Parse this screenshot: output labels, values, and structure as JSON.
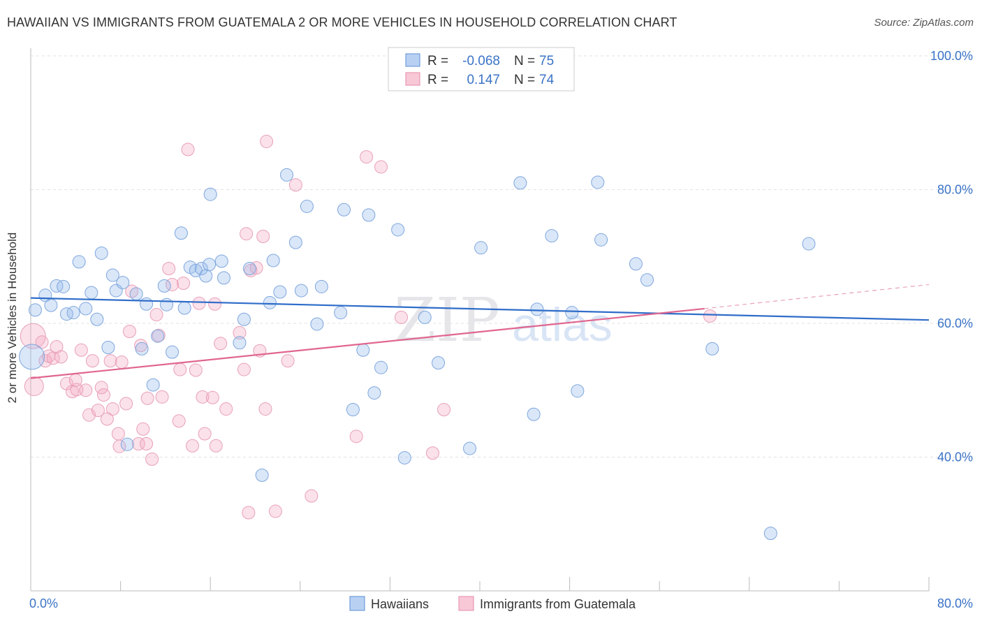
{
  "title": "HAWAIIAN VS IMMIGRANTS FROM GUATEMALA 2 OR MORE VEHICLES IN HOUSEHOLD CORRELATION CHART",
  "source": "Source: ZipAtlas.com",
  "watermark": {
    "zip": "ZIP",
    "atlas": "atlas"
  },
  "stats_box": {
    "rows": [
      {
        "r_label": "R =",
        "r_value": "-0.068",
        "n_label": "N =",
        "n_value": "75"
      },
      {
        "r_label": "R =",
        "r_value": "0.147",
        "n_label": "N =",
        "n_value": "74"
      }
    ]
  },
  "chart_data": {
    "type": "scatter",
    "xlabel": "",
    "ylabel": "2 or more Vehicles in Household",
    "x_tick_labels": [
      "0.0%",
      "80.0%"
    ],
    "y_tick_labels": [
      "100.0%",
      "80.0%",
      "60.0%",
      "40.0%"
    ],
    "xlim": [
      0,
      80
    ],
    "ylim": [
      20,
      102
    ],
    "legend_placement": "bottom",
    "grid": true,
    "colors": {
      "hawaiians": "#5b8fd6",
      "hawaiians_line": "#2f6dc9",
      "guatemala": "#e68aa8",
      "guatemala_line": "#e0668f",
      "tick_text": "#3a73c6"
    },
    "series": [
      {
        "name": "Hawaiians",
        "trend": {
          "x": [
            0,
            80
          ],
          "y": [
            63.8,
            60.5
          ]
        },
        "points": [
          [
            0.1,
            55.0,
            2
          ],
          [
            0.4,
            62.0,
            1
          ],
          [
            1.3,
            64.2,
            1
          ],
          [
            1.8,
            62.7,
            1
          ],
          [
            2.3,
            65.6,
            1
          ],
          [
            2.9,
            65.5,
            1
          ],
          [
            3.2,
            61.4,
            1
          ],
          [
            3.8,
            61.6,
            1
          ],
          [
            4.3,
            69.2,
            1
          ],
          [
            4.9,
            62.2,
            1
          ],
          [
            5.4,
            64.6,
            1
          ],
          [
            5.9,
            60.6,
            1
          ],
          [
            6.3,
            70.5,
            1
          ],
          [
            6.9,
            56.4,
            1
          ],
          [
            7.3,
            67.2,
            1
          ],
          [
            7.6,
            64.9,
            1
          ],
          [
            8.2,
            66.1,
            1
          ],
          [
            8.6,
            41.9,
            1
          ],
          [
            9.4,
            64.4,
            1
          ],
          [
            9.9,
            56.2,
            1
          ],
          [
            10.3,
            62.9,
            1
          ],
          [
            10.9,
            50.8,
            1
          ],
          [
            11.3,
            58.1,
            1
          ],
          [
            11.9,
            65.6,
            1
          ],
          [
            12.1,
            62.8,
            1
          ],
          [
            12.6,
            55.7,
            1
          ],
          [
            13.4,
            73.5,
            1
          ],
          [
            13.7,
            62.3,
            1
          ],
          [
            14.2,
            68.4,
            1
          ],
          [
            14.7,
            67.9,
            1
          ],
          [
            15.2,
            68.2,
            1
          ],
          [
            15.6,
            67.1,
            1
          ],
          [
            16.0,
            79.3,
            1
          ],
          [
            17.0,
            69.3,
            1
          ],
          [
            17.2,
            66.8,
            1
          ],
          [
            18.6,
            57.1,
            1
          ],
          [
            19.0,
            60.6,
            1
          ],
          [
            19.5,
            68.2,
            1
          ],
          [
            20.6,
            37.3,
            1
          ],
          [
            21.3,
            63.1,
            1
          ],
          [
            21.6,
            69.4,
            1
          ],
          [
            22.2,
            64.7,
            1
          ],
          [
            22.8,
            82.2,
            1
          ],
          [
            23.6,
            72.1,
            1
          ],
          [
            24.1,
            64.9,
            1
          ],
          [
            24.6,
            77.5,
            1
          ],
          [
            25.5,
            59.9,
            1
          ],
          [
            25.9,
            65.5,
            1
          ],
          [
            27.6,
            61.6,
            1
          ],
          [
            27.9,
            77.0,
            1
          ],
          [
            29.6,
            56.0,
            1
          ],
          [
            30.1,
            76.2,
            1
          ],
          [
            30.6,
            49.6,
            1
          ],
          [
            31.2,
            53.4,
            1
          ],
          [
            32.7,
            74.0,
            1
          ],
          [
            33.3,
            39.9,
            1
          ],
          [
            35.1,
            60.9,
            1
          ],
          [
            36.3,
            54.1,
            1
          ],
          [
            39.1,
            41.3,
            1
          ],
          [
            40.1,
            71.3,
            1
          ],
          [
            43.6,
            81.0,
            1
          ],
          [
            44.8,
            46.4,
            1
          ],
          [
            45.1,
            62.1,
            1
          ],
          [
            46.4,
            73.1,
            1
          ],
          [
            48.2,
            61.6,
            1
          ],
          [
            48.7,
            49.9,
            1
          ],
          [
            50.5,
            81.1,
            1
          ],
          [
            50.8,
            72.5,
            1
          ],
          [
            53.9,
            68.9,
            1
          ],
          [
            54.9,
            66.5,
            1
          ],
          [
            60.7,
            56.2,
            1
          ],
          [
            65.9,
            28.6,
            1
          ],
          [
            69.3,
            71.9,
            1
          ],
          [
            28.7,
            47.1,
            1
          ],
          [
            15.9,
            68.8,
            1
          ]
        ]
      },
      {
        "name": "Immigrants from Guatemala",
        "trend": {
          "x": [
            0,
            60
          ],
          "y": [
            51.8,
            62.2
          ]
        },
        "trend_dashed": {
          "x": [
            60,
            80
          ],
          "y": [
            62.2,
            65.8
          ]
        },
        "points": [
          [
            0.2,
            58.1,
            2
          ],
          [
            0.3,
            50.6,
            1.5
          ],
          [
            1.3,
            54.4,
            1
          ],
          [
            1.6,
            55.1,
            1
          ],
          [
            2.0,
            54.8,
            1
          ],
          [
            2.3,
            56.5,
            1
          ],
          [
            2.7,
            55.0,
            1
          ],
          [
            3.2,
            51.0,
            1
          ],
          [
            3.7,
            49.8,
            1
          ],
          [
            4.1,
            50.1,
            1
          ],
          [
            4.5,
            56.0,
            1
          ],
          [
            4.9,
            50.0,
            1
          ],
          [
            5.2,
            46.3,
            1
          ],
          [
            5.5,
            54.4,
            1
          ],
          [
            6.0,
            47.0,
            1
          ],
          [
            6.3,
            50.4,
            1
          ],
          [
            6.5,
            49.3,
            1
          ],
          [
            6.8,
            45.7,
            1
          ],
          [
            7.1,
            54.4,
            1
          ],
          [
            7.3,
            47.2,
            1
          ],
          [
            7.8,
            43.5,
            1
          ],
          [
            7.9,
            41.6,
            1
          ],
          [
            8.1,
            54.2,
            1
          ],
          [
            8.5,
            48.0,
            1
          ],
          [
            8.8,
            58.8,
            1
          ],
          [
            9.0,
            64.8,
            1
          ],
          [
            9.6,
            42.0,
            1
          ],
          [
            9.8,
            56.7,
            1
          ],
          [
            10.0,
            44.2,
            1
          ],
          [
            10.3,
            42.0,
            1
          ],
          [
            10.4,
            48.8,
            1
          ],
          [
            10.8,
            39.7,
            1
          ],
          [
            11.2,
            61.3,
            1
          ],
          [
            11.4,
            58.2,
            1
          ],
          [
            11.7,
            49.0,
            1
          ],
          [
            12.3,
            68.2,
            1
          ],
          [
            12.6,
            65.8,
            1
          ],
          [
            13.2,
            45.4,
            1
          ],
          [
            13.3,
            53.1,
            1
          ],
          [
            13.6,
            66.0,
            1
          ],
          [
            14.0,
            86.0,
            1
          ],
          [
            14.4,
            41.7,
            1
          ],
          [
            14.7,
            53.0,
            1
          ],
          [
            15.0,
            63.0,
            1
          ],
          [
            15.3,
            49.0,
            1
          ],
          [
            15.5,
            43.5,
            1
          ],
          [
            16.2,
            48.9,
            1
          ],
          [
            16.4,
            62.9,
            1
          ],
          [
            16.5,
            41.7,
            1
          ],
          [
            16.9,
            57.0,
            1
          ],
          [
            17.4,
            47.2,
            1
          ],
          [
            18.6,
            58.6,
            1
          ],
          [
            19.0,
            53.1,
            1
          ],
          [
            19.2,
            73.4,
            1
          ],
          [
            19.6,
            67.9,
            1
          ],
          [
            20.1,
            68.3,
            1
          ],
          [
            20.7,
            73.0,
            1
          ],
          [
            20.9,
            47.2,
            1
          ],
          [
            21.0,
            87.2,
            1
          ],
          [
            21.8,
            31.9,
            1
          ],
          [
            22.9,
            54.4,
            1
          ],
          [
            23.6,
            80.7,
            1
          ],
          [
            25.0,
            34.2,
            1
          ],
          [
            29.0,
            43.1,
            1
          ],
          [
            29.9,
            84.9,
            1
          ],
          [
            31.2,
            83.4,
            1
          ],
          [
            33.0,
            60.9,
            1
          ],
          [
            35.8,
            40.6,
            1
          ],
          [
            36.8,
            47.1,
            1
          ],
          [
            60.5,
            61.1,
            1
          ],
          [
            20.4,
            55.9,
            1
          ],
          [
            19.4,
            31.7,
            1
          ],
          [
            1.0,
            57.2,
            1
          ],
          [
            4.0,
            51.5,
            1
          ]
        ]
      }
    ]
  }
}
